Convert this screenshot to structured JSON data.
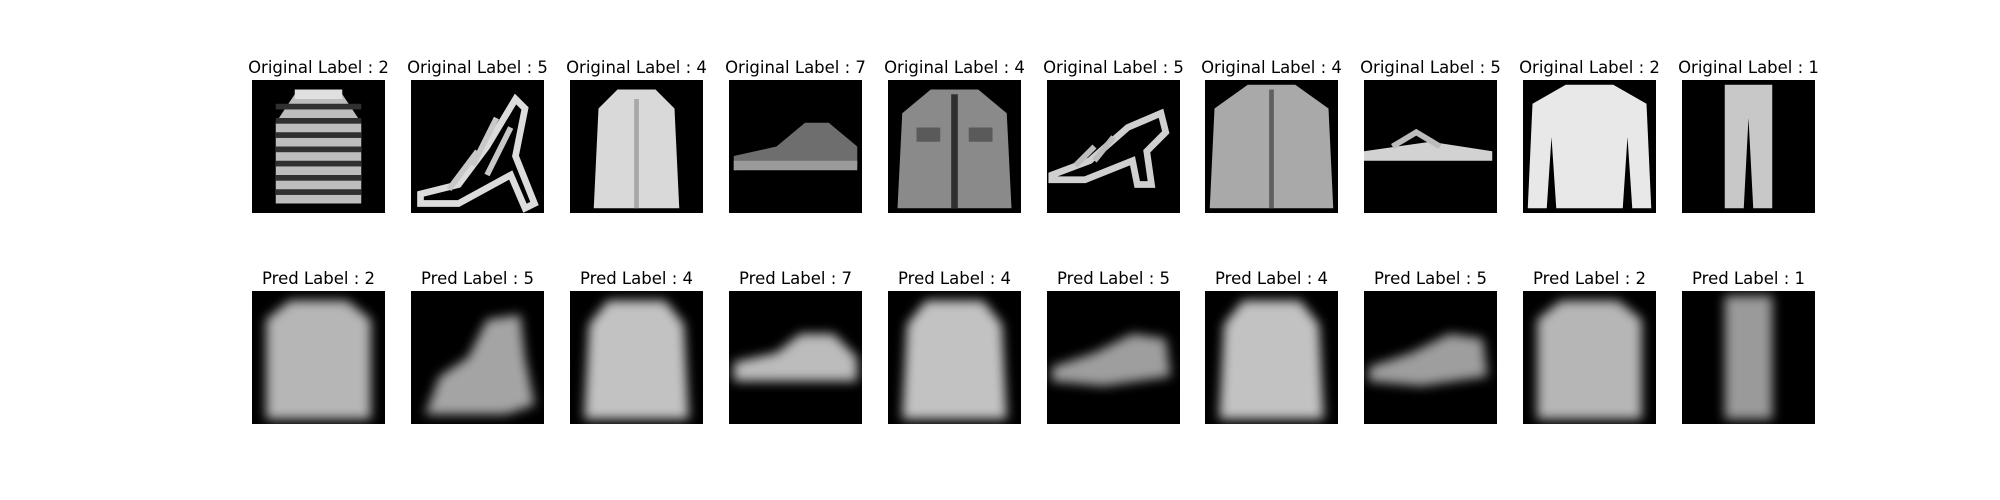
{
  "figure": {
    "original_prefix": "Original Label : ",
    "pred_prefix": "Pred Label : ",
    "columns": [
      {
        "original_label": "2",
        "pred_label": "2",
        "item": "striped-sweater",
        "pred_item": "blurry-pullover"
      },
      {
        "original_label": "5",
        "pred_label": "5",
        "item": "strappy-high-heel-sandal",
        "pred_item": "blurry-ankle-boot"
      },
      {
        "original_label": "4",
        "pred_label": "4",
        "item": "long-coat",
        "pred_item": "blurry-coat"
      },
      {
        "original_label": "7",
        "pred_label": "7",
        "item": "sneaker",
        "pred_item": "blurry-sneaker"
      },
      {
        "original_label": "4",
        "pred_label": "4",
        "item": "denim-jacket",
        "pred_item": "blurry-coat"
      },
      {
        "original_label": "5",
        "pred_label": "5",
        "item": "heeled-sandal",
        "pred_item": "blurry-sandal"
      },
      {
        "original_label": "4",
        "pred_label": "4",
        "item": "zip-jacket",
        "pred_item": "blurry-coat"
      },
      {
        "original_label": "5",
        "pred_label": "5",
        "item": "flip-flop-sandal",
        "pred_item": "blurry-sandal"
      },
      {
        "original_label": "2",
        "pred_label": "2",
        "item": "long-sleeve-pullover",
        "pred_item": "blurry-pullover"
      },
      {
        "original_label": "1",
        "pred_label": "1",
        "item": "trousers",
        "pred_item": "blurry-trousers"
      }
    ]
  }
}
